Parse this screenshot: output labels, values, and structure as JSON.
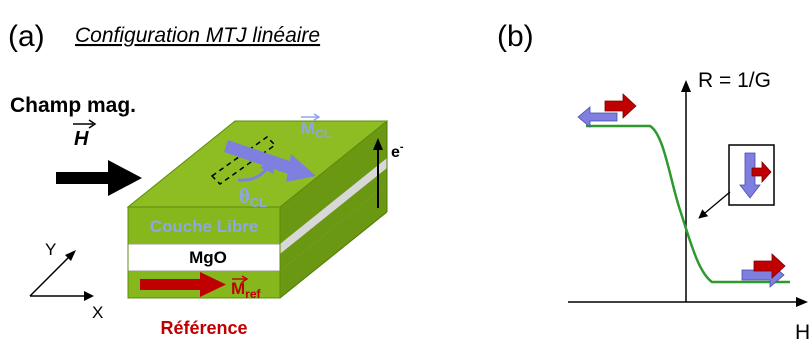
{
  "panel_a": {
    "label": "(a)",
    "title": "Configuration MTJ linéaire",
    "field_label": "Champ mag.",
    "field_symbol": "H",
    "free_layer": "Couche Libre",
    "barrier": "MgO",
    "reference": "Référence",
    "m_cl": "M",
    "m_cl_sub": "CL",
    "m_ref": "M",
    "m_ref_sub": "ref",
    "theta": "θ",
    "theta_sub": "CL",
    "electron": "e",
    "electron_sup": "-",
    "axis_x": "X",
    "axis_y": "Y"
  },
  "panel_b": {
    "label": "(b)",
    "y_axis_label": "R = 1/G",
    "x_axis_label": "H"
  },
  "colors": {
    "green_top": "#8dbd22",
    "green_front": "#86b81d",
    "green_side": "#6a9812",
    "free_layer_text": "#8fa5e8",
    "barrier_front": "#ffffff",
    "reference_text": "#c00000",
    "moment_blue": "#7f7fe0",
    "moment_red": "#c00000",
    "curve_green": "#2e9a2e"
  }
}
